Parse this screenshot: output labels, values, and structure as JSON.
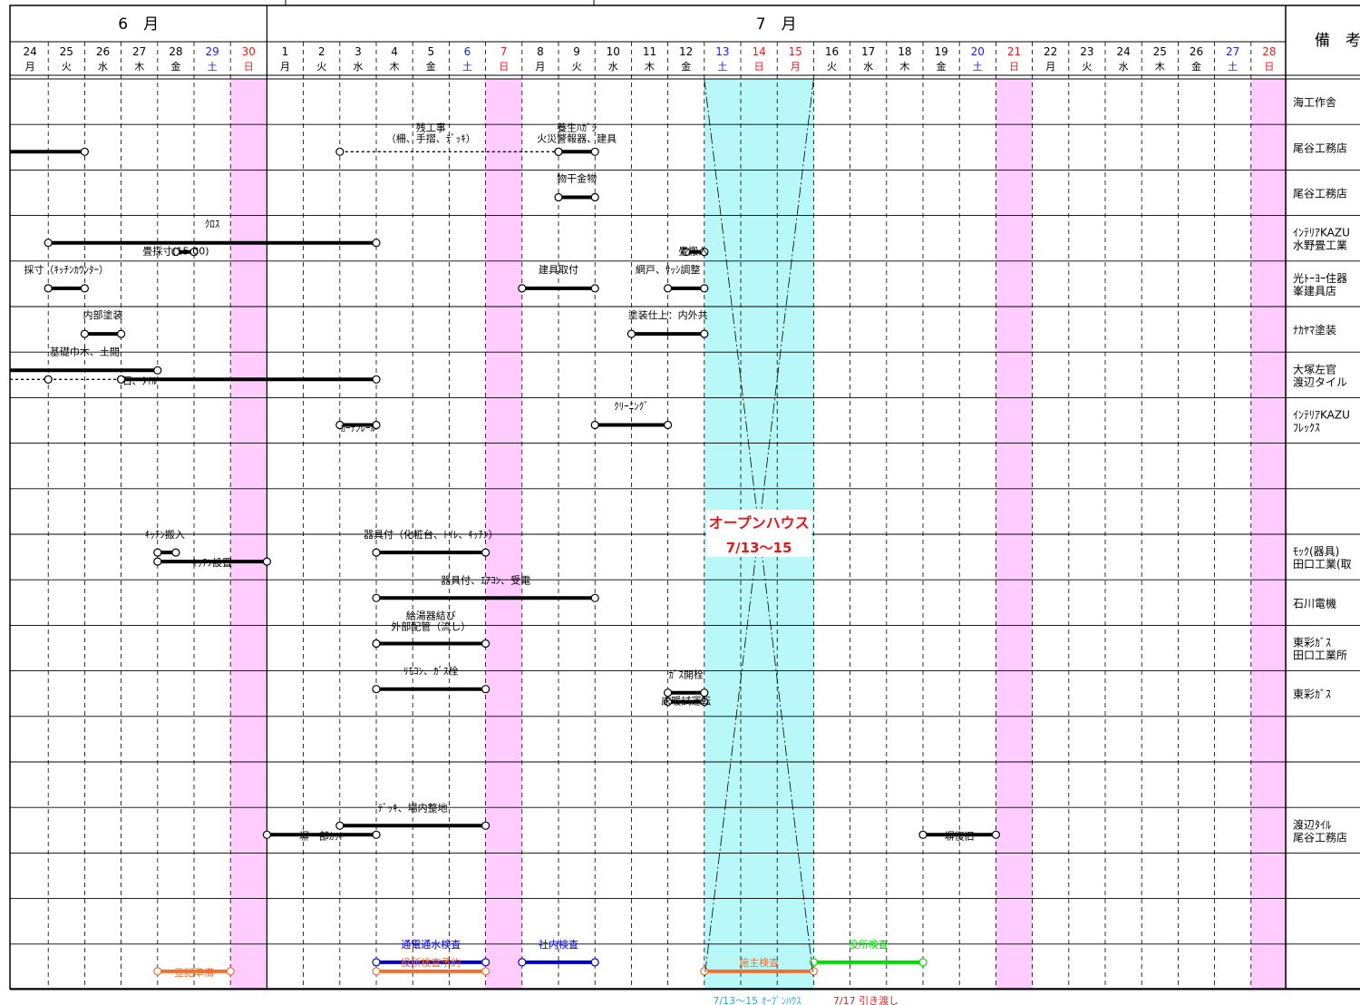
{
  "months": [
    {
      "label": "6　月"
    },
    {
      "label": "7　月"
    }
  ],
  "remarks_header": "備　考",
  "days": [
    {
      "d": "24",
      "w": "月",
      "c": "normal"
    },
    {
      "d": "25",
      "w": "火",
      "c": "normal"
    },
    {
      "d": "26",
      "w": "水",
      "c": "normal"
    },
    {
      "d": "27",
      "w": "木",
      "c": "normal"
    },
    {
      "d": "28",
      "w": "金",
      "c": "normal"
    },
    {
      "d": "29",
      "w": "土",
      "c": "sat"
    },
    {
      "d": "30",
      "w": "日",
      "c": "sun"
    },
    {
      "d": "1",
      "w": "月",
      "c": "normal"
    },
    {
      "d": "2",
      "w": "火",
      "c": "normal"
    },
    {
      "d": "3",
      "w": "水",
      "c": "normal"
    },
    {
      "d": "4",
      "w": "木",
      "c": "normal"
    },
    {
      "d": "5",
      "w": "金",
      "c": "normal"
    },
    {
      "d": "6",
      "w": "土",
      "c": "sat"
    },
    {
      "d": "7",
      "w": "日",
      "c": "sun"
    },
    {
      "d": "8",
      "w": "月",
      "c": "normal"
    },
    {
      "d": "9",
      "w": "火",
      "c": "normal"
    },
    {
      "d": "10",
      "w": "水",
      "c": "normal"
    },
    {
      "d": "11",
      "w": "木",
      "c": "normal"
    },
    {
      "d": "12",
      "w": "金",
      "c": "normal"
    },
    {
      "d": "13",
      "w": "土",
      "c": "sat"
    },
    {
      "d": "14",
      "w": "日",
      "c": "sun"
    },
    {
      "d": "15",
      "w": "月",
      "c": "sun"
    },
    {
      "d": "16",
      "w": "火",
      "c": "normal"
    },
    {
      "d": "17",
      "w": "水",
      "c": "normal"
    },
    {
      "d": "18",
      "w": "木",
      "c": "normal"
    },
    {
      "d": "19",
      "w": "金",
      "c": "normal"
    },
    {
      "d": "20",
      "w": "土",
      "c": "sat"
    },
    {
      "d": "21",
      "w": "日",
      "c": "sun"
    },
    {
      "d": "22",
      "w": "月",
      "c": "normal"
    },
    {
      "d": "23",
      "w": "火",
      "c": "normal"
    },
    {
      "d": "24",
      "w": "水",
      "c": "normal"
    },
    {
      "d": "25",
      "w": "木",
      "c": "normal"
    },
    {
      "d": "26",
      "w": "金",
      "c": "normal"
    },
    {
      "d": "27",
      "w": "土",
      "c": "sat"
    },
    {
      "d": "28",
      "w": "日",
      "c": "sun"
    }
  ],
  "sunday_columns": [
    6,
    13,
    27,
    34
  ],
  "open_house": {
    "start_col": 19,
    "end_col": 21,
    "title": "オープンハウス",
    "dates": "7/13～15"
  },
  "rows": [
    {
      "remark": [
        "海工作舎"
      ]
    },
    {
      "remark": [
        "尾谷工務店"
      ]
    },
    {
      "remark": [
        "尾谷工務店"
      ]
    },
    {
      "remark": [
        "ｲﾝﾃﾘｱKAZU",
        "水野畳工業"
      ]
    },
    {
      "remark": [
        "光ﾄｰﾖｰ住器",
        "峯建具店"
      ]
    },
    {
      "remark": [
        "ﾅｶﾔﾏ塗装"
      ]
    },
    {
      "remark": [
        "大塚左官",
        "渡辺タイル"
      ]
    },
    {
      "remark": [
        "ｲﾝﾃﾘｱKAZU",
        "ﾌﾚｯｸｽ"
      ]
    },
    {
      "remark": []
    },
    {
      "remark": []
    },
    {
      "remark": [
        "ﾓｯｸ(器具)",
        "田口工業(取"
      ]
    },
    {
      "remark": [
        "石川電機"
      ]
    },
    {
      "remark": [
        "東彩ｶﾞｽ",
        "田口工業所"
      ]
    },
    {
      "remark": [
        "東彩ｶﾞｽ"
      ]
    },
    {
      "remark": []
    },
    {
      "remark": []
    },
    {
      "remark": [
        "渡辺ﾀｲﾙ",
        "尾谷工務店"
      ]
    },
    {
      "remark": []
    },
    {
      "remark": []
    },
    {
      "remark": []
    }
  ],
  "tasks": [
    {
      "row": 1,
      "start": -0.5,
      "end": 2,
      "label": "",
      "style": "solid",
      "color": "#000000",
      "dot_start": false
    },
    {
      "row": 1,
      "start": 9,
      "end": 15,
      "label": "",
      "style": "dashed",
      "color": "#000000"
    },
    {
      "row": 1,
      "start": 15,
      "end": 16,
      "label": "",
      "style": "solid",
      "color": "#000000"
    },
    {
      "row": 2,
      "start": 15,
      "end": 16,
      "label": "",
      "style": "solid",
      "color": "#000000"
    },
    {
      "row": 3,
      "start": 1,
      "end": 10,
      "label": "",
      "style": "solid",
      "color": "#000000"
    },
    {
      "row": 3,
      "start": 4.5,
      "end": 5,
      "label": "",
      "style": "solid",
      "color": "#000000",
      "yoff": 10
    },
    {
      "row": 3,
      "start": 18.5,
      "end": 19,
      "label": "",
      "style": "solid",
      "color": "#000000",
      "yoff": 10
    },
    {
      "row": 4,
      "start": 1,
      "end": 2,
      "label": "",
      "style": "solid",
      "color": "#000000"
    },
    {
      "row": 4,
      "start": 14,
      "end": 16,
      "label": "",
      "style": "solid",
      "color": "#000000"
    },
    {
      "row": 4,
      "start": 18,
      "end": 19,
      "label": "",
      "style": "solid",
      "color": "#000000"
    },
    {
      "row": 5,
      "start": 2,
      "end": 3,
      "label": "",
      "style": "solid",
      "color": "#000000"
    },
    {
      "row": 5,
      "start": 17,
      "end": 19,
      "label": "",
      "style": "solid",
      "color": "#000000"
    },
    {
      "row": 6,
      "start": -0.5,
      "end": 4,
      "label": "",
      "style": "solid",
      "color": "#000000",
      "yoff": -10,
      "dot_start": false
    },
    {
      "row": 6,
      "start": -0.5,
      "end": 1,
      "label": "",
      "style": "dashed",
      "color": "#000000",
      "dot_start": false
    },
    {
      "row": 6,
      "start": 1,
      "end": 3,
      "label": "",
      "style": "dashed",
      "color": "#000000"
    },
    {
      "row": 6,
      "start": 3,
      "end": 10,
      "label": "",
      "style": "solid",
      "color": "#000000"
    },
    {
      "row": 7,
      "start": 9,
      "end": 10,
      "label": "",
      "style": "solid",
      "color": "#000000"
    },
    {
      "row": 7,
      "start": 16,
      "end": 18,
      "label": "",
      "style": "solid",
      "color": "#000000"
    },
    {
      "row": 10,
      "start": 4,
      "end": 4.5,
      "label": "",
      "style": "solid",
      "color": "#000000",
      "yoff": -10
    },
    {
      "row": 10,
      "start": 4,
      "end": 7,
      "label": "",
      "style": "solid",
      "color": "#000000"
    },
    {
      "row": 10,
      "start": 10,
      "end": 13,
      "label": "",
      "style": "solid",
      "color": "#000000",
      "yoff": -10
    },
    {
      "row": 11,
      "start": 10,
      "end": 16,
      "label": "",
      "style": "solid",
      "color": "#000000",
      "yoff": -10
    },
    {
      "row": 12,
      "start": 10,
      "end": 13,
      "label": "",
      "style": "solid",
      "color": "#000000",
      "yoff": -10
    },
    {
      "row": 13,
      "start": 10,
      "end": 13,
      "label": "",
      "style": "solid",
      "color": "#000000",
      "yoff": -10
    },
    {
      "row": 13,
      "start": 18,
      "end": 19,
      "label": "",
      "style": "solid",
      "color": "#000000",
      "yoff": -6
    },
    {
      "row": 13,
      "start": 18,
      "end": 19,
      "label": "",
      "style": "solid",
      "color": "#000000",
      "yoff": 4
    },
    {
      "row": 16,
      "start": 9,
      "end": 13,
      "label": "",
      "style": "solid",
      "color": "#000000",
      "yoff": -10
    },
    {
      "row": 16,
      "start": 7,
      "end": 10,
      "label": "",
      "style": "solid",
      "color": "#000000"
    },
    {
      "row": 16,
      "start": 25,
      "end": 27,
      "label": "",
      "style": "solid",
      "color": "#000000"
    },
    {
      "row": 19,
      "start": 10,
      "end": 13,
      "label": "",
      "style": "solid",
      "color": "#0000cc",
      "yoff": -10
    },
    {
      "row": 19,
      "start": 14,
      "end": 16,
      "label": "",
      "style": "solid",
      "color": "#0000cc",
      "yoff": -10
    },
    {
      "row": 19,
      "start": 22,
      "end": 25,
      "label": "",
      "style": "solid",
      "color": "#00dd00",
      "yoff": -10
    },
    {
      "row": 19,
      "start": 4,
      "end": 6,
      "label": "",
      "style": "solid",
      "color": "#f07030"
    },
    {
      "row": 19,
      "start": 10,
      "end": 13,
      "label": "",
      "style": "solid",
      "color": "#f07030"
    },
    {
      "row": 19,
      "start": 19,
      "end": 22,
      "label": "",
      "style": "solid",
      "color": "#f07030"
    }
  ],
  "labels": [
    {
      "row": 1,
      "col": 11.5,
      "yoff": -18,
      "lines": [
        "残工事",
        "（柵、手摺、ﾃﾞｯｷ）"
      ],
      "color": "#000000"
    },
    {
      "row": 1,
      "col": 15.5,
      "yoff": -18,
      "lines": [
        "養生ﾊｶﾞｼ",
        "火災警報器、建具"
      ],
      "color": "#000000"
    },
    {
      "row": 2,
      "col": 15.5,
      "yoff": -12,
      "lines": [
        "物干金物"
      ],
      "color": "#000000"
    },
    {
      "row": 3,
      "col": 5.5,
      "yoff": -12,
      "lines": [
        "ｸﾛｽ"
      ],
      "color": "#000000"
    },
    {
      "row": 3,
      "col": 4.5,
      "yoff": 18,
      "lines": [
        "畳採寸(15:00)"
      ],
      "color": "#000000"
    },
    {
      "row": 3,
      "col": 18.7,
      "yoff": 18,
      "lines": [
        "畳搬入"
      ],
      "color": "#000000"
    },
    {
      "row": 4,
      "col": 1.5,
      "yoff": -12,
      "lines": [
        "採寸（ｷｯﾁﾝｶｳﾝﾀｰ）"
      ],
      "color": "#000000"
    },
    {
      "row": 4,
      "col": 15,
      "yoff": -12,
      "lines": [
        "建具取付"
      ],
      "color": "#000000"
    },
    {
      "row": 4,
      "col": 18,
      "yoff": -12,
      "lines": [
        "網戸、ｻｯｼ調整"
      ],
      "color": "#000000"
    },
    {
      "row": 5,
      "col": 2.5,
      "yoff": -12,
      "lines": [
        "内部塗装"
      ],
      "color": "#000000"
    },
    {
      "row": 5,
      "col": 18,
      "yoff": -12,
      "lines": [
        "塗装仕上：内外共"
      ],
      "color": "#000000"
    },
    {
      "row": 6,
      "col": 2,
      "yoff": -22,
      "lines": [
        "基礎巾木、土間"
      ],
      "color": "#000000"
    },
    {
      "row": 6,
      "col": 3.5,
      "yoff": 10,
      "lines": [
        "石、ﾀｲﾙ"
      ],
      "color": "#000000"
    },
    {
      "row": 7,
      "col": 9.5,
      "yoff": 12,
      "lines": [
        "ｶｰﾃﾝﾚｰﾙ"
      ],
      "color": "#000000"
    },
    {
      "row": 7,
      "col": 17,
      "yoff": -12,
      "lines": [
        "ｸﾘｰﾆﾝｸﾞ"
      ],
      "color": "#000000"
    },
    {
      "row": 10,
      "col": 4.2,
      "yoff": -21,
      "lines": [
        "ｷｯﾁﾝ搬入"
      ],
      "color": "#000000"
    },
    {
      "row": 10,
      "col": 5.5,
      "yoff": 10,
      "lines": [
        "ｷｯﾁﾝ設置"
      ],
      "color": "#000000"
    },
    {
      "row": 10,
      "col": 11.5,
      "yoff": -21,
      "lines": [
        "器具付（化粧台、ﾄｲﾚ、ｷｯﾁﾝ）"
      ],
      "color": "#000000"
    },
    {
      "row": 11,
      "col": 13,
      "yoff": -21,
      "lines": [
        "器具付、ｴｱｺﾝ、受電"
      ],
      "color": "#000000"
    },
    {
      "row": 12,
      "col": 11.5,
      "yoff": -32,
      "lines": [
        "給湯器結び",
        "外部配管（流し）"
      ],
      "color": "#000000"
    },
    {
      "row": 13,
      "col": 11.5,
      "yoff": -21,
      "lines": [
        "ﾘﾓｺﾝ、ｶﾞｽ栓"
      ],
      "color": "#000000"
    },
    {
      "row": 13,
      "col": 18.5,
      "yoff": -17,
      "lines": [
        "ｶﾞｽ開栓"
      ],
      "color": "#000000"
    },
    {
      "row": 13,
      "col": 18.5,
      "yoff": 12,
      "lines": [
        "床暖試運転"
      ],
      "color": "#000000"
    },
    {
      "row": 16,
      "col": 11,
      "yoff": -21,
      "lines": [
        "ﾃﾞｯｷ、場内整地"
      ],
      "color": "#000000"
    },
    {
      "row": 16,
      "col": 8.5,
      "yoff": 10,
      "lines": [
        "塀一部ｶｯﾄ"
      ],
      "color": "#000000"
    },
    {
      "row": 16,
      "col": 26,
      "yoff": 10,
      "lines": [
        "塀復旧"
      ],
      "color": "#000000"
    },
    {
      "row": 19,
      "col": 11.5,
      "yoff": -21,
      "lines": [
        "通電通水検査"
      ],
      "color": "#0000cc"
    },
    {
      "row": 19,
      "col": 15,
      "yoff": -21,
      "lines": [
        "社内検査"
      ],
      "color": "#0000cc"
    },
    {
      "row": 19,
      "col": 23.5,
      "yoff": -21,
      "lines": [
        "役所検査"
      ],
      "color": "#00dd00"
    },
    {
      "row": 19,
      "col": 5,
      "yoff": 10,
      "lines": [
        "登記準備"
      ],
      "color": "#f07030"
    },
    {
      "row": 19,
      "col": 11.5,
      "yoff": -1,
      "lines": [
        "役所検査予約"
      ],
      "color": "#f07030"
    },
    {
      "row": 19,
      "col": 20.5,
      "yoff": -1,
      "lines": [
        "施主検査"
      ],
      "color": "#f07030"
    }
  ],
  "footer_notes": [
    {
      "text": "7/13～15 ｵｰﾌﾟﾝﾊｳｽ",
      "color": "#22aadd"
    },
    {
      "text": "7/17 引き渡し",
      "color": "#dd2222"
    }
  ],
  "colors": {
    "sunday_fill": "#ffccff",
    "openhouse_fill": "#b8f8f8",
    "sat_text": "#1a1aff",
    "sun_text": "#e02020",
    "title_red": "#e01818"
  }
}
